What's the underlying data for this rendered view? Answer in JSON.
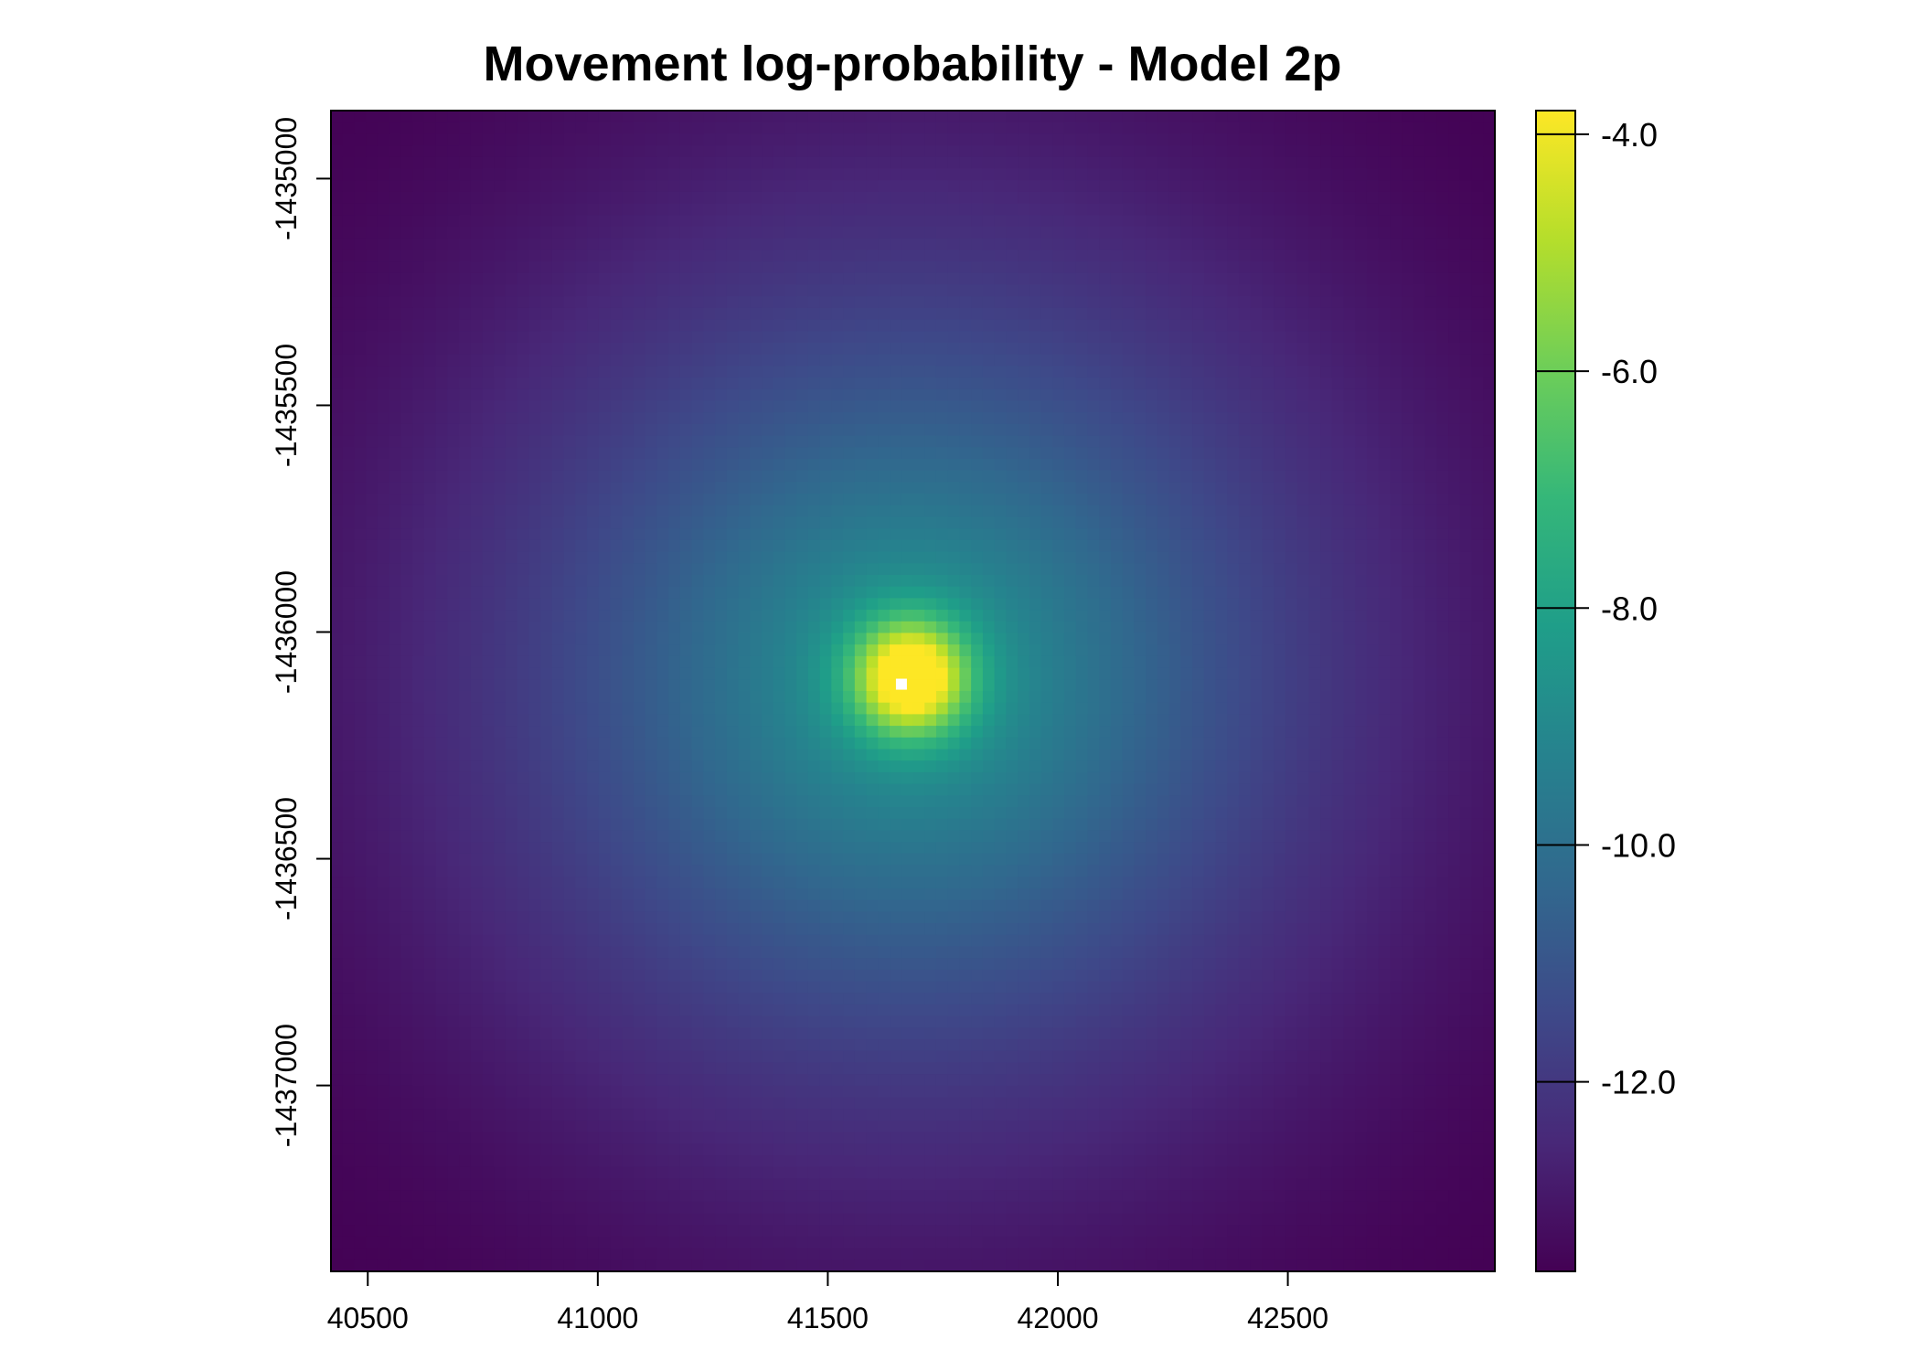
{
  "chart_data": {
    "type": "heatmap",
    "title": "Movement log-probability - Model 2p",
    "xlabel": "",
    "ylabel": "",
    "x_ticks": [
      40500,
      41000,
      41500,
      42000,
      42500
    ],
    "y_ticks": [
      -1435000,
      -1435500,
      -1436000,
      -1436500,
      -1437000
    ],
    "xlim": [
      40420,
      42950
    ],
    "ylim": [
      -1437410,
      -1434850
    ],
    "grid": false,
    "colormap": "viridis",
    "colormap_stops": [
      "#440154",
      "#482878",
      "#3e4989",
      "#31688e",
      "#26828e",
      "#1f9e89",
      "#35b779",
      "#6ece58",
      "#b5de2b",
      "#fde725"
    ],
    "colorbar": {
      "ticks": [
        -4.0,
        -6.0,
        -8.0,
        -10.0,
        -12.0
      ],
      "tick_labels": [
        "-4.0",
        "-6.0",
        "-8.0",
        "-10.0",
        "-12.0"
      ],
      "range": [
        -13.6,
        -3.8
      ],
      "placement": "right"
    },
    "peak": {
      "x": 41680,
      "y": -1436100,
      "value": -3.8
    },
    "values_description": "log-probability decreases radially from the peak; corners approx -13.6",
    "marker": {
      "x": 41660,
      "y": -1436115,
      "color": "#ffffff"
    }
  }
}
